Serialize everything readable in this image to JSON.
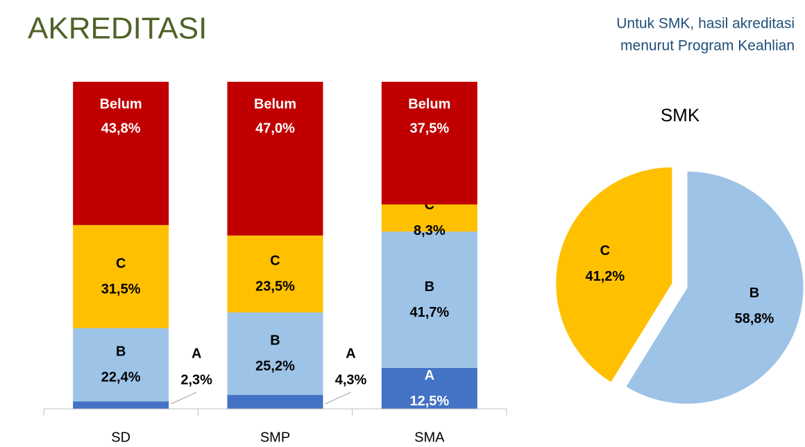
{
  "title": "AKREDITASI",
  "note": [
    "Untuk SMK, hasil akreditasi",
    "menurut Program Keahlian"
  ],
  "chart_data": [
    {
      "type": "stacked_bar",
      "categories": [
        "SD",
        "SMP",
        "SMA"
      ],
      "ylim": [
        0,
        100
      ],
      "series": [
        {
          "name": "A",
          "color": "#4472c4",
          "values": [
            2.3,
            4.3,
            12.5
          ],
          "value_labels": [
            "2,3%",
            "4,3%",
            "12,5%"
          ]
        },
        {
          "name": "B",
          "color": "#9dc3e6",
          "values": [
            22.4,
            25.2,
            41.7
          ],
          "value_labels": [
            "22,4%",
            "25,2%",
            "41,7%"
          ]
        },
        {
          "name": "C",
          "color": "#ffc000",
          "values": [
            31.5,
            23.5,
            8.3
          ],
          "value_labels": [
            "31,5%",
            "23,5%",
            "8,3%"
          ]
        },
        {
          "name": "Belum",
          "color": "#c00000",
          "values": [
            43.8,
            47.0,
            37.5
          ],
          "value_labels": [
            "43,8%",
            "47,0%",
            "37,5%"
          ]
        }
      ]
    },
    {
      "type": "pie",
      "title": "SMK",
      "categories": [
        "B",
        "C"
      ],
      "values": [
        58.8,
        41.2
      ],
      "value_labels": [
        "58,8%",
        "41,2%"
      ],
      "colors": [
        "#9dc3e6",
        "#ffc000"
      ]
    }
  ]
}
